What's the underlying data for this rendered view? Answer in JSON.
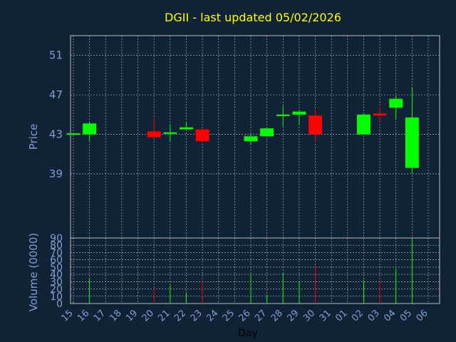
{
  "chart_data": {
    "type": "candlestick",
    "title": "DGII - last updated 05/02/2026",
    "xlabel": "Day",
    "price_panel": {
      "ylabel": "Price",
      "ylim": [
        32.5,
        53
      ],
      "yticks": [
        39,
        43,
        47,
        51
      ],
      "grid": true
    },
    "volume_panel": {
      "ylabel": "Volume (0000)",
      "ylim": [
        0,
        90
      ],
      "yticks": [
        0,
        10,
        20,
        30,
        40,
        50,
        60,
        70,
        80,
        90
      ],
      "grid": true
    },
    "x_ticks": [
      "15",
      "16",
      "17",
      "18",
      "19",
      "20",
      "21",
      "22",
      "23",
      "24",
      "25",
      "26",
      "27",
      "28",
      "29",
      "30",
      "31",
      "01",
      "02",
      "03",
      "04",
      "05",
      "06"
    ],
    "candles": [
      {
        "day": "15",
        "open": 43.0,
        "high": 43.1,
        "low": 42.9,
        "close": 43.1,
        "volume": 2
      },
      {
        "day": "16",
        "open": 43.0,
        "high": 44.2,
        "low": 42.3,
        "close": 44.1,
        "volume": 35
      },
      {
        "day": "20",
        "open": 43.3,
        "high": 44.7,
        "low": 42.7,
        "close": 42.7,
        "volume": 20
      },
      {
        "day": "21",
        "open": 43.1,
        "high": 44.0,
        "low": 42.3,
        "close": 43.2,
        "volume": 25
      },
      {
        "day": "22",
        "open": 43.5,
        "high": 44.2,
        "low": 43.5,
        "close": 43.7,
        "volume": 15
      },
      {
        "day": "23",
        "open": 43.5,
        "high": 43.6,
        "low": 42.2,
        "close": 42.3,
        "volume": 30
      },
      {
        "day": "26",
        "open": 42.3,
        "high": 43.1,
        "low": 42.0,
        "close": 42.8,
        "volume": 40
      },
      {
        "day": "27",
        "open": 42.8,
        "high": 43.7,
        "low": 42.8,
        "close": 43.6,
        "volume": 12
      },
      {
        "day": "28",
        "open": 44.9,
        "high": 45.9,
        "low": 43.8,
        "close": 45.0,
        "volume": 42
      },
      {
        "day": "29",
        "open": 45.0,
        "high": 45.4,
        "low": 43.9,
        "close": 45.3,
        "volume": 30
      },
      {
        "day": "30",
        "open": 44.9,
        "high": 45.5,
        "low": 42.2,
        "close": 43.0,
        "volume": 52
      },
      {
        "day": "02",
        "open": 43.0,
        "high": 45.1,
        "low": 43.0,
        "close": 45.0,
        "volume": 32
      },
      {
        "day": "03",
        "open": 45.1,
        "high": 45.8,
        "low": 44.2,
        "close": 44.9,
        "volume": 30
      },
      {
        "day": "04",
        "open": 45.7,
        "high": 46.9,
        "low": 44.5,
        "close": 46.6,
        "volume": 48
      },
      {
        "day": "05",
        "open": 39.6,
        "high": 47.8,
        "low": 39.0,
        "close": 44.7,
        "volume": 88
      }
    ],
    "colors": {
      "background": "#0f2236",
      "up": "#00ff00",
      "down": "#ff0000",
      "grid": "#c0c0c0",
      "axis_text": "#7f9fd0",
      "title": "#ffff00"
    }
  }
}
